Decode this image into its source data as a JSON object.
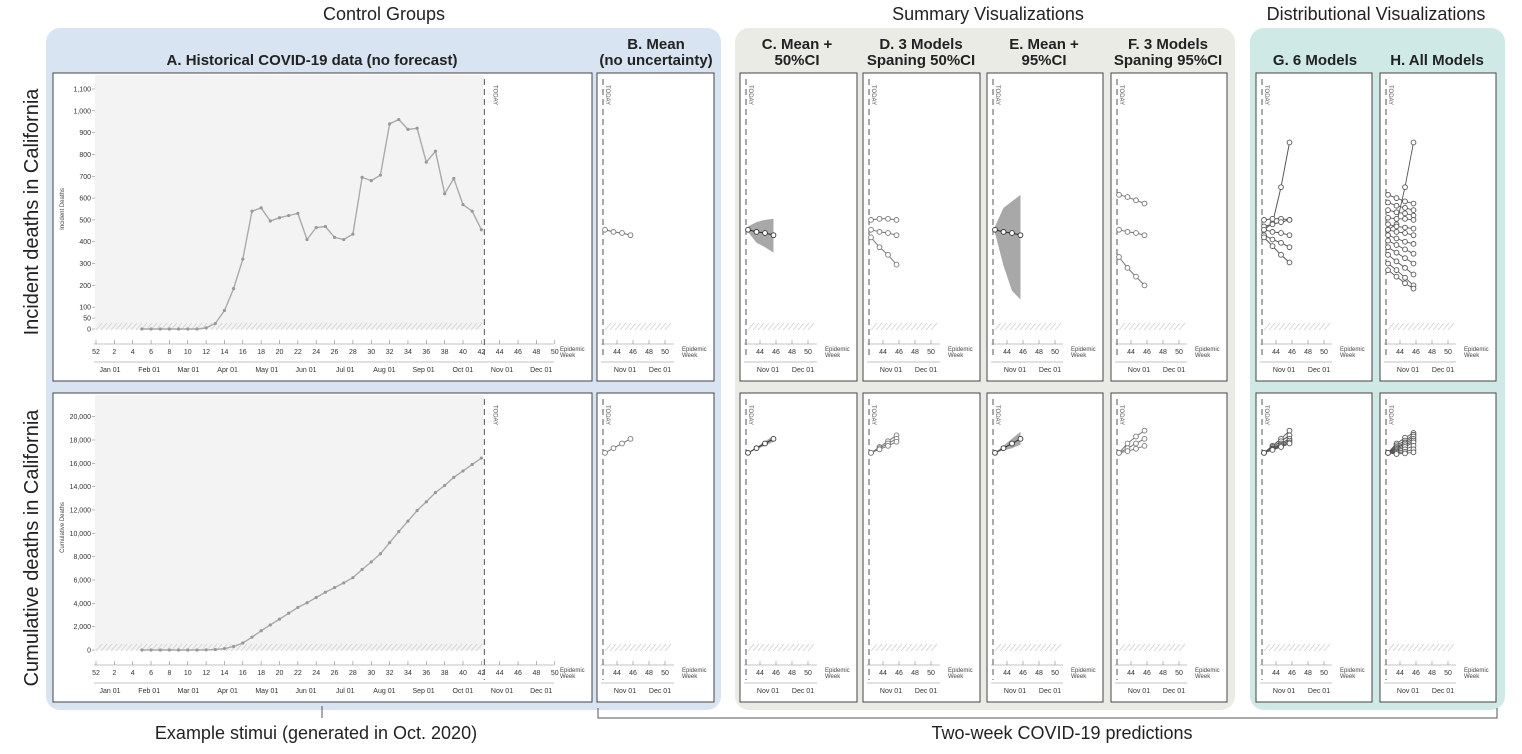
{
  "group_titles": {
    "control": "Control Groups",
    "summary": "Summary Visualizations",
    "distributional": "Distributional Visualizations"
  },
  "colors": {
    "control_bg": "#d9e4f2",
    "summary_bg": "#ebebe6",
    "distributional_bg": "#cfe9e6",
    "history_bg": "#f3f3f3",
    "hist_line": "#aaaaaa",
    "forecast_line": "#777777",
    "ci_fill": "#999999"
  },
  "panel_titles": {
    "A": "A. Historical COVID-19 data (no forecast)",
    "B": [
      "B. Mean",
      "(no uncertainty)"
    ],
    "C": [
      "C. Mean +",
      "50%CI"
    ],
    "D": [
      "D. 3 Models",
      "Spaning 50%CI"
    ],
    "E": [
      "E. Mean +",
      "95%CI"
    ],
    "F": [
      "F. 3 Models",
      "Spaning 95%CI"
    ],
    "G": "G. 6 Models",
    "H": "H. All Models"
  },
  "row_labels": {
    "incident": "Incident deaths in California",
    "cumulative": "Cumulative deaths in California"
  },
  "footer": {
    "left": "Example stimui (generated in Oct. 2020)",
    "right": "Two-week COVID-19 predictions"
  },
  "today_label": "TODAY",
  "epi_label": [
    "Epidemic",
    "Week"
  ],
  "chart_data": [
    {
      "type": "line",
      "panel": "A",
      "ylabel": "Incident Deaths",
      "ylim": [
        0,
        1100
      ],
      "yticks": [
        0,
        50,
        100,
        200,
        300,
        400,
        500,
        600,
        700,
        800,
        900,
        1000,
        1100
      ],
      "ytick_labels": [
        "0",
        "50",
        "100",
        "200",
        "300",
        "400",
        "500",
        "600",
        "700",
        "800",
        "900",
        "1,000",
        "1,100"
      ],
      "xticks": [
        52,
        2,
        4,
        6,
        8,
        10,
        12,
        14,
        16,
        18,
        20,
        22,
        24,
        26,
        28,
        30,
        32,
        34,
        36,
        38,
        40,
        42,
        44,
        46,
        48,
        50
      ],
      "month_labels": [
        "Jan 01",
        "Feb 01",
        "Mar 01",
        "Apr 01",
        "May 01",
        "Jun 01",
        "Jul 01",
        "Aug 01",
        "Sep 01",
        "Oct 01",
        "Nov 01",
        "Dec 01"
      ],
      "x": [
        5,
        6,
        7,
        8,
        9,
        10,
        11,
        12,
        13,
        14,
        15,
        16,
        17,
        18,
        19,
        20,
        21,
        22,
        23,
        24,
        25,
        26,
        27,
        28,
        29,
        30,
        31,
        32,
        33,
        34,
        35,
        36,
        37,
        38,
        39,
        40,
        41,
        42
      ],
      "values": [
        0,
        0,
        0,
        0,
        0,
        0,
        0,
        5,
        25,
        85,
        185,
        320,
        540,
        555,
        495,
        510,
        520,
        530,
        410,
        465,
        470,
        420,
        410,
        435,
        695,
        680,
        705,
        940,
        960,
        915,
        920,
        765,
        815,
        620,
        690,
        570,
        540,
        455
      ]
    },
    {
      "type": "line",
      "panel": "A",
      "ylabel": "Cumulative Deaths",
      "ylim": [
        0,
        21000
      ],
      "yticks": [
        0,
        2000,
        4000,
        6000,
        8000,
        10000,
        12000,
        14000,
        16000,
        18000,
        20000
      ],
      "ytick_labels": [
        "0",
        "2,000",
        "4,000",
        "6,000",
        "8,000",
        "10,000",
        "12,000",
        "14,000",
        "16,000",
        "18,000",
        "20,000"
      ],
      "xticks": [
        52,
        2,
        4,
        6,
        8,
        10,
        12,
        14,
        16,
        18,
        20,
        22,
        24,
        26,
        28,
        30,
        32,
        34,
        36,
        38,
        40,
        42,
        44,
        46,
        48,
        50
      ],
      "month_labels": [
        "Jan 01",
        "Feb 01",
        "Mar 01",
        "Apr 01",
        "May 01",
        "Jun 01",
        "Jul 01",
        "Aug 01",
        "Sep 01",
        "Oct 01",
        "Nov 01",
        "Dec 01"
      ],
      "x": [
        5,
        6,
        7,
        8,
        9,
        10,
        11,
        12,
        13,
        14,
        15,
        16,
        17,
        18,
        19,
        20,
        21,
        22,
        23,
        24,
        25,
        26,
        27,
        28,
        29,
        30,
        31,
        32,
        33,
        34,
        35,
        36,
        37,
        38,
        39,
        40,
        41,
        42
      ],
      "values": [
        0,
        0,
        0,
        0,
        0,
        0,
        0,
        10,
        40,
        120,
        300,
        600,
        1100,
        1650,
        2150,
        2650,
        3150,
        3650,
        4050,
        4500,
        4950,
        5350,
        5750,
        6200,
        6900,
        7550,
        8250,
        9200,
        10150,
        11050,
        11950,
        12700,
        13500,
        14100,
        14800,
        15350,
        15900,
        16450
      ]
    },
    {
      "type": "line",
      "panels": [
        "B",
        "C",
        "D",
        "E",
        "F",
        "G",
        "H"
      ],
      "xticks": [
        44,
        46,
        48,
        50
      ],
      "month_labels": [
        "Nov 01",
        "Dec 01"
      ],
      "incident": {
        "mean": {
          "x": [
            43,
            44,
            45,
            46
          ],
          "values": [
            455,
            445,
            440,
            430
          ]
        },
        "ci50": {
          "lower": [
            445,
            395,
            375,
            350
          ],
          "upper": [
            470,
            490,
            500,
            505
          ]
        },
        "ci95": {
          "lower": [
            440,
            290,
            175,
            135
          ],
          "upper": [
            470,
            555,
            585,
            615
          ]
        },
        "models_50": [
          [
            500,
            505,
            505,
            500
          ],
          [
            455,
            445,
            440,
            430
          ],
          [
            420,
            375,
            340,
            295
          ]
        ],
        "models_95": [
          [
            615,
            605,
            590,
            575
          ],
          [
            455,
            445,
            440,
            430
          ],
          [
            330,
            280,
            240,
            200
          ]
        ],
        "models_6": [
          [
            455,
            485,
            650,
            855
          ],
          [
            500,
            505,
            505,
            500
          ],
          [
            470,
            480,
            490,
            500
          ],
          [
            455,
            445,
            440,
            430
          ],
          [
            430,
            410,
            395,
            375
          ],
          [
            420,
            380,
            340,
            305
          ]
        ],
        "all_models": [
          [
            455,
            480,
            650,
            855
          ],
          [
            615,
            600,
            585,
            575
          ],
          [
            580,
            565,
            555,
            545
          ],
          [
            545,
            535,
            530,
            520
          ],
          [
            510,
            505,
            505,
            500
          ],
          [
            480,
            470,
            465,
            460
          ],
          [
            455,
            445,
            440,
            430
          ],
          [
            430,
            415,
            400,
            390
          ],
          [
            405,
            385,
            365,
            345
          ],
          [
            375,
            350,
            325,
            300
          ],
          [
            340,
            310,
            280,
            250
          ],
          [
            300,
            270,
            235,
            200
          ],
          [
            270,
            240,
            210,
            185
          ]
        ]
      },
      "cumulative": {
        "mean": {
          "x": [
            43,
            44,
            45,
            46
          ],
          "values": [
            16900,
            17300,
            17700,
            18100
          ]
        },
        "ci50": {
          "lower": [
            16900,
            17200,
            17500,
            17850
          ],
          "upper": [
            16900,
            17400,
            17900,
            18350
          ]
        },
        "ci95": {
          "lower": [
            16900,
            17100,
            17300,
            17600
          ],
          "upper": [
            16900,
            17500,
            18100,
            18700
          ]
        },
        "models_50": [
          [
            16900,
            17400,
            17900,
            18400
          ],
          [
            16900,
            17300,
            17700,
            18100
          ],
          [
            16900,
            17200,
            17500,
            17850
          ]
        ],
        "models_95": [
          [
            16900,
            17700,
            18300,
            18800
          ],
          [
            16900,
            17300,
            17700,
            18100
          ],
          [
            16900,
            17050,
            17250,
            17500
          ]
        ],
        "models_6": [
          [
            16900,
            17500,
            18100,
            18800
          ],
          [
            16900,
            17400,
            17900,
            18400
          ],
          [
            16900,
            17300,
            17700,
            18100
          ],
          [
            16900,
            17250,
            17600,
            17950
          ],
          [
            16900,
            17200,
            17500,
            17800
          ],
          [
            16900,
            17150,
            17400,
            17700
          ]
        ],
        "all_models": [
          [
            16900,
            17700,
            18200,
            18600
          ],
          [
            16900,
            17550,
            17950,
            18450
          ],
          [
            16900,
            17400,
            17800,
            18300
          ],
          [
            16900,
            17300,
            17700,
            18100
          ],
          [
            16900,
            17200,
            17550,
            17950
          ],
          [
            16900,
            17100,
            17400,
            17800
          ],
          [
            16900,
            17000,
            17200,
            17500
          ],
          [
            16900,
            16900,
            17000,
            17200
          ],
          [
            16900,
            16800,
            16850,
            16950
          ]
        ]
      }
    }
  ]
}
